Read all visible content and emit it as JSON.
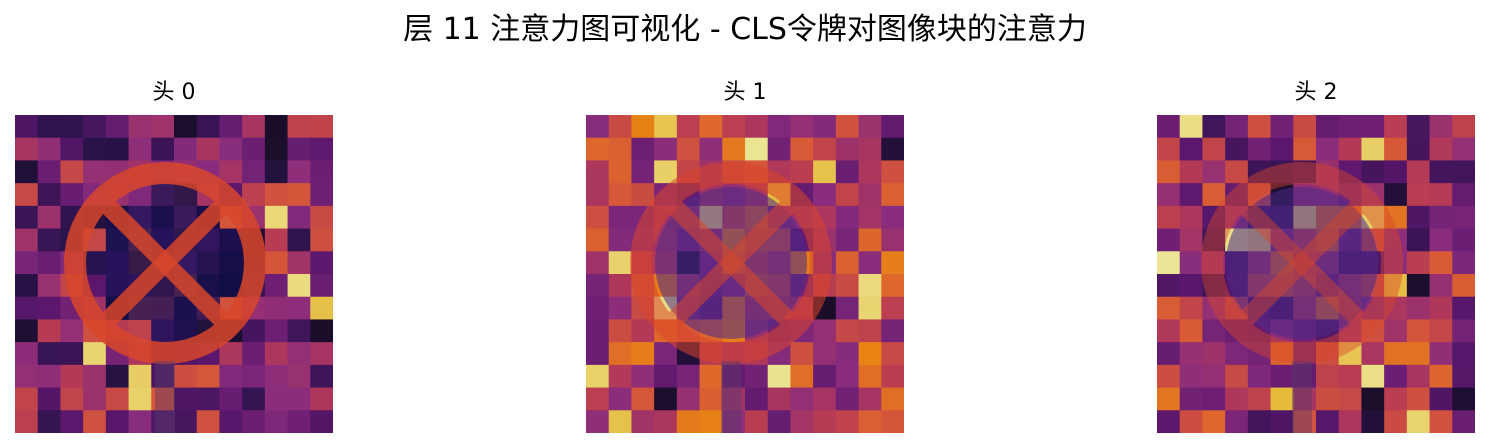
{
  "figure": {
    "title": "层 11 注意力图可视化 - CLS令牌对图像块的注意力"
  },
  "chart_data": {
    "type": "heatmap",
    "colormap": "inferno",
    "overlay": "prohibition-sign-photo",
    "grid_size": 14,
    "panels": [
      {
        "title": "头 0"
      },
      {
        "title": "头 1"
      },
      {
        "title": "头 2"
      }
    ]
  }
}
